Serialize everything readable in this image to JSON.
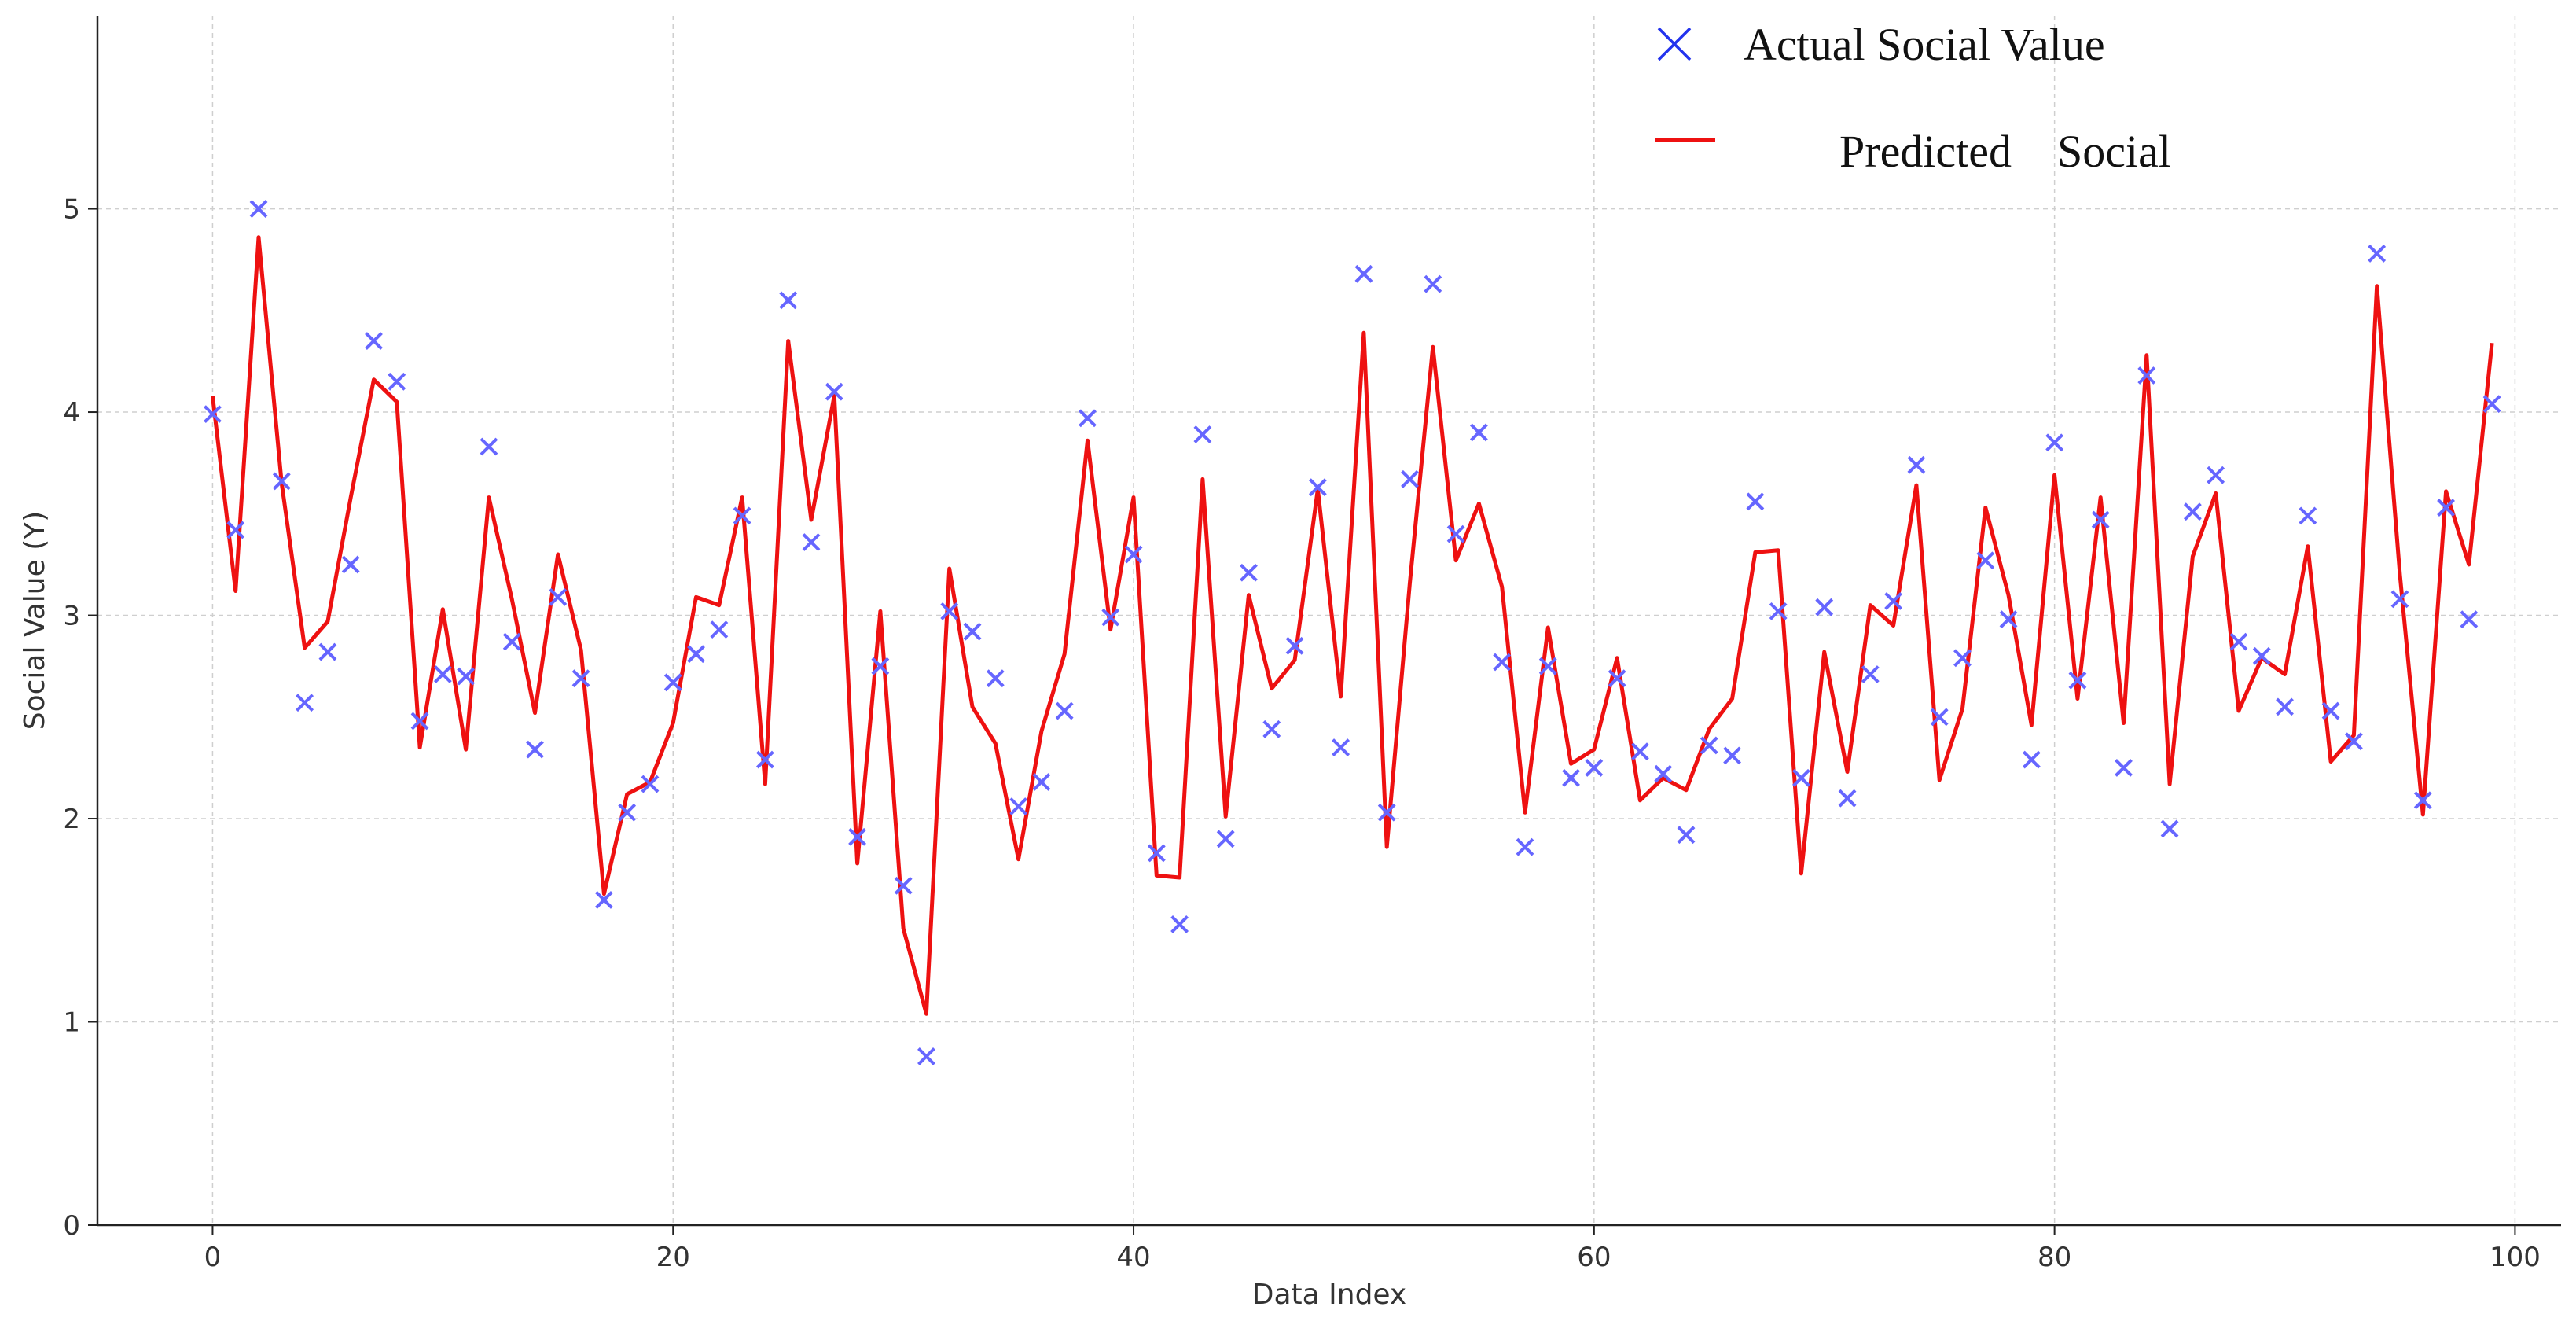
{
  "chart_data": {
    "type": "scatter",
    "title": "",
    "xlabel": "Data Index",
    "ylabel": "Social Value (Y)",
    "xlim": [
      -5,
      102
    ],
    "ylim": [
      0,
      5.95
    ],
    "xticks": [
      0,
      20,
      40,
      60,
      80,
      100
    ],
    "yticks": [
      0,
      1,
      2,
      3,
      4,
      5
    ],
    "grid": true,
    "legend": "top-right",
    "series": [
      {
        "name": "Actual Social Value",
        "kind": "scatter",
        "marker": "x",
        "color": "#6666ff",
        "x": [
          0,
          1,
          2,
          3,
          4,
          5,
          6,
          7,
          8,
          9,
          10,
          11,
          12,
          13,
          14,
          15,
          16,
          17,
          18,
          19,
          20,
          21,
          22,
          23,
          24,
          25,
          26,
          27,
          28,
          29,
          30,
          31,
          32,
          33,
          34,
          35,
          36,
          37,
          38,
          39,
          40,
          41,
          42,
          43,
          44,
          45,
          46,
          47,
          48,
          49,
          50,
          51,
          52,
          53,
          54,
          55,
          56,
          57,
          58,
          59,
          60,
          61,
          62,
          63,
          64,
          65,
          66,
          67,
          68,
          69,
          70,
          71,
          72,
          73,
          74,
          75,
          76,
          77,
          78,
          79,
          80,
          81,
          82,
          83,
          84,
          85,
          86,
          87,
          88,
          89,
          90,
          91,
          92,
          93,
          94,
          95,
          96,
          97,
          98,
          99
        ],
        "y": [
          3.99,
          3.42,
          5.0,
          3.66,
          2.57,
          2.82,
          3.25,
          4.35,
          4.15,
          2.48,
          2.71,
          2.7,
          3.83,
          2.87,
          2.34,
          3.09,
          2.69,
          1.6,
          2.03,
          2.17,
          2.67,
          2.81,
          2.93,
          3.49,
          2.29,
          4.55,
          3.36,
          4.1,
          1.91,
          2.75,
          1.67,
          0.83,
          3.02,
          2.92,
          2.69,
          2.06,
          2.18,
          2.53,
          3.97,
          2.99,
          3.3,
          1.83,
          1.48,
          3.89,
          1.9,
          3.21,
          2.44,
          2.85,
          3.63,
          2.35,
          4.68,
          2.03,
          3.67,
          4.63,
          3.4,
          3.9,
          2.77,
          1.86,
          2.75,
          2.2,
          2.25,
          2.69,
          2.33,
          2.22,
          1.92,
          2.36,
          2.31,
          3.56,
          3.02,
          2.2,
          3.04,
          2.1,
          2.71,
          3.07,
          3.74,
          2.5,
          2.79,
          3.27,
          2.98,
          2.29,
          3.85,
          2.68,
          3.47,
          2.25,
          4.18,
          1.95,
          3.51,
          3.69,
          2.87,
          2.8,
          2.55,
          3.49,
          2.53,
          2.38,
          4.78,
          3.08,
          2.09,
          3.53,
          2.98,
          4.04
        ]
      },
      {
        "name": "Predicted    Social",
        "kind": "line",
        "color": "#ee1111",
        "x": [
          0,
          1,
          2,
          3,
          4,
          5,
          6,
          7,
          8,
          9,
          10,
          11,
          12,
          13,
          14,
          15,
          16,
          17,
          18,
          19,
          20,
          21,
          22,
          23,
          24,
          25,
          26,
          27,
          28,
          29,
          30,
          31,
          32,
          33,
          34,
          35,
          36,
          37,
          38,
          39,
          40,
          41,
          42,
          43,
          44,
          45,
          46,
          47,
          48,
          49,
          50,
          51,
          52,
          53,
          54,
          55,
          56,
          57,
          58,
          59,
          60,
          61,
          62,
          63,
          64,
          65,
          66,
          67,
          68,
          69,
          70,
          71,
          72,
          73,
          74,
          75,
          76,
          77,
          78,
          79,
          80,
          81,
          82,
          83,
          84,
          85,
          86,
          87,
          88,
          89,
          90,
          91,
          92,
          93,
          94,
          95,
          96,
          97,
          98,
          99
        ],
        "y": [
          4.08,
          3.12,
          4.86,
          3.65,
          2.84,
          2.97,
          3.58,
          4.16,
          4.05,
          2.35,
          3.03,
          2.34,
          3.58,
          3.08,
          2.52,
          3.3,
          2.83,
          1.63,
          2.12,
          2.18,
          2.47,
          3.09,
          3.05,
          3.58,
          2.17,
          4.35,
          3.47,
          4.08,
          1.78,
          3.02,
          1.46,
          1.04,
          3.23,
          2.55,
          2.37,
          1.8,
          2.43,
          2.81,
          3.86,
          2.93,
          3.58,
          1.72,
          1.71,
          3.67,
          2.01,
          3.1,
          2.64,
          2.78,
          3.62,
          2.6,
          4.39,
          1.86,
          3.16,
          4.32,
          3.27,
          3.55,
          3.14,
          2.03,
          2.94,
          2.27,
          2.34,
          2.79,
          2.09,
          2.2,
          2.14,
          2.44,
          2.59,
          3.31,
          3.32,
          1.73,
          2.82,
          2.23,
          3.05,
          2.95,
          3.64,
          2.19,
          2.54,
          3.53,
          3.1,
          2.46,
          3.69,
          2.59,
          3.58,
          2.47,
          4.28,
          2.17,
          3.29,
          3.6,
          2.53,
          2.79,
          2.71,
          3.34,
          2.28,
          2.41,
          4.62,
          3.2,
          2.02,
          3.61,
          3.25,
          4.34
        ]
      }
    ]
  }
}
